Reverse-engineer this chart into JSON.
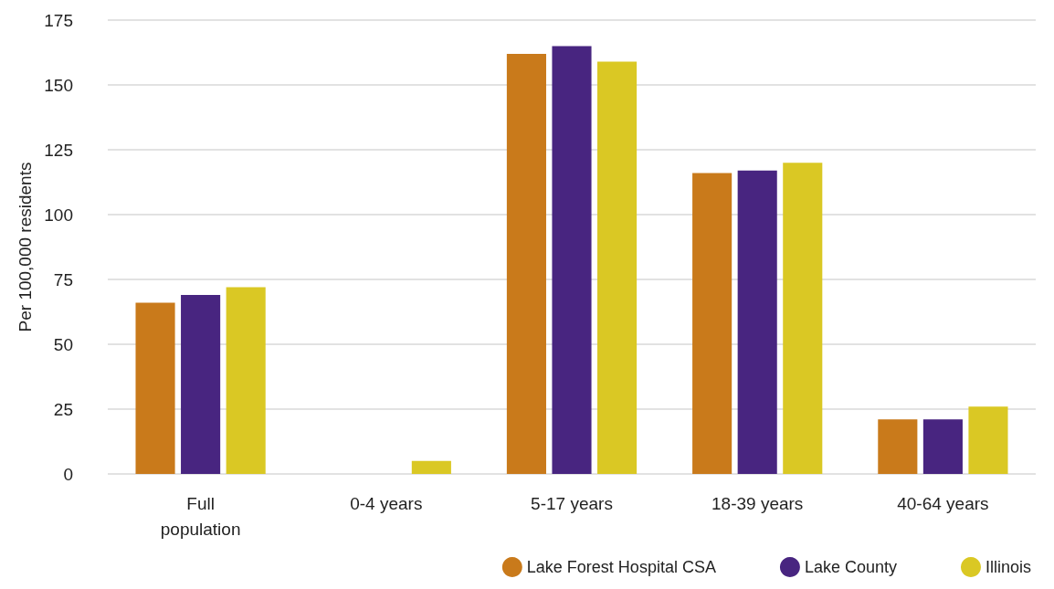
{
  "chart_data": {
    "type": "bar",
    "ylabel": "Per 100,000 residents",
    "categories": [
      "Full\npopulation",
      "0-4 years",
      "5-17 years",
      "18-39 years",
      "40-64 years"
    ],
    "series": [
      {
        "name": "Lake Forest Hospital CSA",
        "color": "#c97a1b",
        "values": [
          66,
          null,
          162,
          116,
          21
        ]
      },
      {
        "name": "Lake County",
        "color": "#482580",
        "values": [
          69,
          null,
          165,
          117,
          21
        ]
      },
      {
        "name": "Illinois",
        "color": "#dac824",
        "values": [
          72,
          5,
          159,
          120,
          26
        ]
      }
    ],
    "ylim": [
      0,
      175
    ],
    "yticks": [
      0,
      25,
      50,
      75,
      100,
      125,
      150,
      175
    ],
    "grid": "y",
    "legend": "bottom right"
  }
}
